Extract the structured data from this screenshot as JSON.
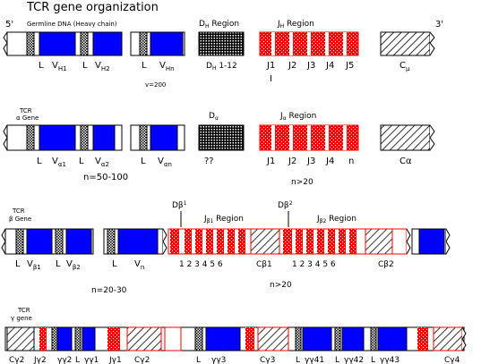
{
  "title": "TCR gene organization",
  "colors": {
    "v_segment": "#0000ff",
    "j_segment": "#ff0000",
    "outline": "#000000",
    "red_outline": "#ff0000"
  },
  "rows": {
    "heavy": {
      "left_end": "5'",
      "right_end": "3'",
      "header": "Germline DNA (Heavy chain)",
      "d_region": "D",
      "d_region_sub": "H",
      "d_region_suffix": " Region",
      "j_region": "J",
      "j_region_sub": "H",
      "j_region_suffix": " Region",
      "L": "L",
      "V": "V",
      "v1_sub": "H1",
      "v2_sub": "H2",
      "vn_sub": "Hn",
      "count": "v=200",
      "d_label": "D",
      "d_label_sub": "H",
      "d_label_suffix": " 1-12",
      "j_labels": [
        "J1",
        "J2",
        "J3",
        "J4",
        "J5"
      ],
      "j_tick": "I",
      "c_label": "C",
      "c_label_sub": "μ"
    },
    "alpha": {
      "line1": "TCR",
      "line2": "α Gene",
      "d_region": "D",
      "d_region_sub": "α",
      "j_region": "J",
      "j_region_sub": "α",
      "j_region_suffix": "  Region",
      "L": "L",
      "V": "V",
      "v1_sub": "α1",
      "v2_sub": "α2",
      "vn_sub": "αn",
      "d_unknown": "??",
      "j_labels": [
        "J1",
        "J2",
        "J3",
        "J4",
        "n"
      ],
      "c_label": "Cα",
      "count": "n=50-100",
      "j_count": "n>20"
    },
    "beta": {
      "line1": "TCR",
      "line2": "β Gene",
      "d1": "Dβ",
      "d1_sup": "1",
      "d2": "Dβ",
      "d2_sup": "2",
      "j1_region": "J",
      "j1_region_sub": "β1",
      "j1_region_suffix": "  Region",
      "j2_region": "J",
      "j2_region_sub": "β2",
      "j2_region_suffix": "  Region",
      "L": "L",
      "V": "V",
      "v1_sub": "β1",
      "v2_sub": "β2",
      "vn_sub": "n",
      "j1_numbers": "1 2 3  4  5  6",
      "j2_numbers": "1 2 3  4  5  6",
      "c1": "Cβ1",
      "c2": "Cβ2",
      "count": "n=20-30",
      "j_count": "n>20"
    },
    "gamma": {
      "line1": "TCR",
      "line2": "γ gene",
      "labels": [
        "Cγ2",
        "Jγ2",
        "γγ2",
        "L",
        "γγ1",
        "Jγ1",
        "Cγ2",
        "L",
        "γγ3",
        "Cγ3",
        "L",
        "γγ41",
        "L",
        "γγ42",
        "L",
        "γγ43",
        "Cγ4"
      ]
    }
  }
}
